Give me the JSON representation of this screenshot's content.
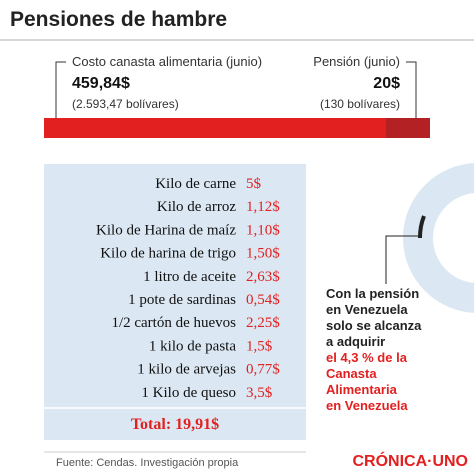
{
  "header": {
    "title": "Pensiones de hambre"
  },
  "costo": {
    "label": "Costo canasta alimentaria (junio)",
    "value": "459,84$",
    "bolivares": "(2.593,47 bolívares)"
  },
  "pension": {
    "label": "Pensión (junio)",
    "value": "20$",
    "bolivares": "(130 bolívares)"
  },
  "table": {
    "rows": [
      [
        "Kilo de carne",
        "5$"
      ],
      [
        "Kilo de arroz",
        "1,12$"
      ],
      [
        "Kilo de Harina de maíz",
        "1,10$"
      ],
      [
        "Kilo de harina de trigo",
        "1,50$"
      ],
      [
        "1 litro de aceite",
        "2,63$"
      ],
      [
        "1 pote de sardinas",
        "0,54$"
      ],
      [
        "1/2 cartón de huevos",
        "2,25$"
      ],
      [
        "1 kilo de pasta",
        "1,5$"
      ],
      [
        "1 kilo de arvejas",
        "0,77$"
      ],
      [
        "1 Kilo de queso",
        "3,5$"
      ]
    ],
    "total": "Total: 19,91$"
  },
  "note": {
    "lines": [
      "Con la pensión",
      "en Venezuela",
      "solo se alcanza",
      "a adquirir"
    ],
    "highlight": [
      "el 4,3 % de la",
      "Canasta",
      "Alimentaria",
      "en Venezuela"
    ]
  },
  "source": "Fuente: Cendas. Investigación propia",
  "logo": "CRÓNICA·UNO"
}
